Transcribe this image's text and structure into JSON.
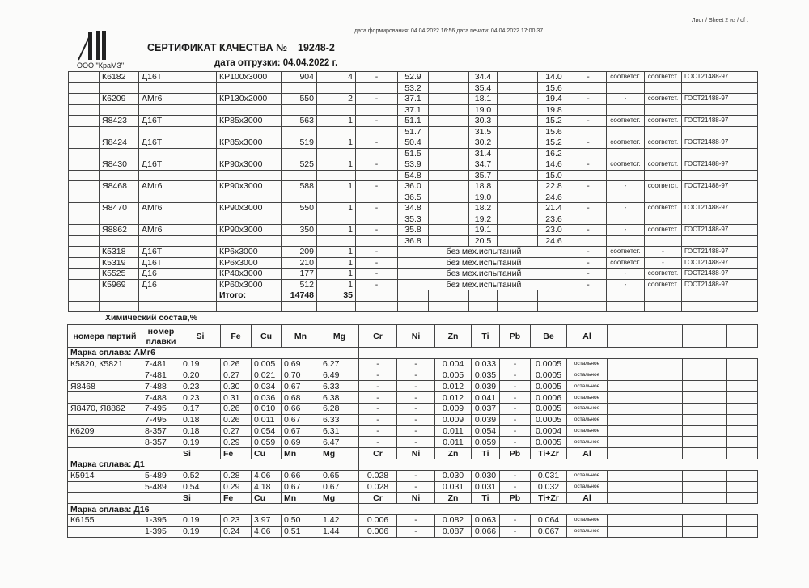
{
  "header": {
    "sheet": "Лист / Sheet  2 из / of  :",
    "dates": "дата формирования: 04.04.2022 16:56  дата печати: 04.04.2022 17:00:37",
    "title": "СЕРТИФИКАТ КАЧЕСТВА №",
    "number": "19248-2",
    "company": "ООО \"КраМЗ\"",
    "logo_text": "KraMZ",
    "ship_date": "дата отгрузки: 04.04.2022 г."
  },
  "shipment": {
    "rows": [
      {
        "lot": "К6182",
        "alloy": "Д16Т",
        "size": "КР100x3000",
        "mass": "904",
        "pcs": "4",
        "d": "-",
        "a": [
          "52.9",
          "53.2"
        ],
        "b": [
          "34.4",
          "35.4"
        ],
        "c": [
          "14.0",
          "15.6"
        ],
        "e": "-",
        "f": "соответст.",
        "g": "соответст.",
        "std": "ГОСТ21488-97"
      },
      {
        "lot": "К6209",
        "alloy": "АМг6",
        "size": "КР130x2000",
        "mass": "550",
        "pcs": "2",
        "d": "-",
        "a": [
          "37.1",
          "37.1"
        ],
        "b": [
          "18.1",
          "19.0"
        ],
        "c": [
          "19.4",
          "19.8"
        ],
        "e": "-",
        "f": "-",
        "g": "соответст.",
        "std": "ГОСТ21488-97"
      },
      {
        "lot": "Я8423",
        "alloy": "Д16Т",
        "size": "КР85x3000",
        "mass": "563",
        "pcs": "1",
        "d": "-",
        "a": [
          "51.1",
          "51.7"
        ],
        "b": [
          "30.3",
          "31.5"
        ],
        "c": [
          "15.2",
          "15.6"
        ],
        "e": "-",
        "f": "соответст.",
        "g": "соответст.",
        "std": "ГОСТ21488-97"
      },
      {
        "lot": "Я8424",
        "alloy": "Д16Т",
        "size": "КР85x3000",
        "mass": "519",
        "pcs": "1",
        "d": "-",
        "a": [
          "50.4",
          "51.5"
        ],
        "b": [
          "30.2",
          "31.4"
        ],
        "c": [
          "15.2",
          "16.2"
        ],
        "e": "-",
        "f": "соответст.",
        "g": "соответст.",
        "std": "ГОСТ21488-97"
      },
      {
        "lot": "Я8430",
        "alloy": "Д16Т",
        "size": "КР90x3000",
        "mass": "525",
        "pcs": "1",
        "d": "-",
        "a": [
          "53.9",
          "54.8"
        ],
        "b": [
          "34.7",
          "35.7"
        ],
        "c": [
          "14.6",
          "15.0"
        ],
        "e": "-",
        "f": "соответст.",
        "g": "соответст.",
        "std": "ГОСТ21488-97"
      },
      {
        "lot": "Я8468",
        "alloy": "АМг6",
        "size": "КР90x3000",
        "mass": "588",
        "pcs": "1",
        "d": "-",
        "a": [
          "36.0",
          "36.5"
        ],
        "b": [
          "18.8",
          "19.0"
        ],
        "c": [
          "22.8",
          "24.6"
        ],
        "e": "-",
        "f": "-",
        "g": "соответст.",
        "std": "ГОСТ21488-97"
      },
      {
        "lot": "Я8470",
        "alloy": "АМг6",
        "size": "КР90x3000",
        "mass": "550",
        "pcs": "1",
        "d": "-",
        "a": [
          "34.8",
          "35.3"
        ],
        "b": [
          "18.2",
          "19.2"
        ],
        "c": [
          "21.4",
          "23.6"
        ],
        "e": "-",
        "f": "-",
        "g": "соответст.",
        "std": "ГОСТ21488-97"
      },
      {
        "lot": "Я8862",
        "alloy": "АМг6",
        "size": "КР90x3000",
        "mass": "350",
        "pcs": "1",
        "d": "-",
        "a": [
          "35.8",
          "36.8"
        ],
        "b": [
          "19.1",
          "20.5"
        ],
        "c": [
          "23.0",
          "24.6"
        ],
        "e": "-",
        "f": "-",
        "g": "соответст.",
        "std": "ГОСТ21488-97"
      }
    ],
    "simple": [
      {
        "lot": "К5318",
        "alloy": "Д16Т",
        "size": "КР6x3000",
        "mass": "209",
        "pcs": "1",
        "d": "-",
        "note": "без мех.испытаний",
        "e": "-",
        "f": "соответст.",
        "g": "-",
        "std": "ГОСТ21488-97"
      },
      {
        "lot": "К5319",
        "alloy": "Д16Т",
        "size": "КР6x3000",
        "mass": "210",
        "pcs": "1",
        "d": "-",
        "note": "без мех.испытаний",
        "e": "-",
        "f": "соответст.",
        "g": "-",
        "std": "ГОСТ21488-97"
      },
      {
        "lot": "К5525",
        "alloy": "Д16",
        "size": "КР40x3000",
        "mass": "177",
        "pcs": "1",
        "d": "-",
        "note": "без мех.испытаний",
        "e": "-",
        "f": "-",
        "g": "соответст.",
        "std": "ГОСТ21488-97"
      },
      {
        "lot": "К5969",
        "alloy": "Д16",
        "size": "КР60x3000",
        "mass": "512",
        "pcs": "1",
        "d": "-",
        "note": "без мех.испытаний",
        "e": "-",
        "f": "-",
        "g": "соответст.",
        "std": "ГОСТ21488-97"
      }
    ],
    "total_label": "Итого:",
    "total_mass": "14748",
    "total_pcs": "35"
  },
  "chem": {
    "title": "Химический состав,%",
    "headers": [
      "номера партий",
      "номер плавки",
      "Si",
      "Fe",
      "Cu",
      "Mn",
      "Mg",
      "Cr",
      "Ni",
      "Zn",
      "Ti",
      "Pb",
      "Be",
      "Al"
    ],
    "groups": [
      {
        "grade": "Марка сплава: АМг6",
        "rows": [
          [
            "К5820, К5821",
            "7-481",
            "0.19",
            "0.26",
            "0.005",
            "0.69",
            "6.27",
            "-",
            "-",
            "0.004",
            "0.033",
            "-",
            "0.0005",
            "остальное"
          ],
          [
            "",
            "7-481",
            "0.20",
            "0.27",
            "0.021",
            "0.70",
            "6.49",
            "-",
            "-",
            "0.005",
            "0.035",
            "-",
            "0.0005",
            "остальное"
          ],
          [
            "Я8468",
            "7-488",
            "0.23",
            "0.30",
            "0.034",
            "0.67",
            "6.33",
            "-",
            "-",
            "0.012",
            "0.039",
            "-",
            "0.0005",
            "остальное"
          ],
          [
            "",
            "7-488",
            "0.23",
            "0.31",
            "0.036",
            "0.68",
            "6.38",
            "-",
            "-",
            "0.012",
            "0.041",
            "-",
            "0.0006",
            "остальное"
          ],
          [
            "Я8470, Я8862",
            "7-495",
            "0.17",
            "0.26",
            "0.010",
            "0.66",
            "6.28",
            "-",
            "-",
            "0.009",
            "0.037",
            "-",
            "0.0005",
            "остальное"
          ],
          [
            "",
            "7-495",
            "0.18",
            "0.26",
            "0.011",
            "0.67",
            "6.33",
            "-",
            "-",
            "0.009",
            "0.039",
            "-",
            "0.0005",
            "остальное"
          ],
          [
            "К6209",
            "8-357",
            "0.18",
            "0.27",
            "0.054",
            "0.67",
            "6.31",
            "-",
            "-",
            "0.011",
            "0.054",
            "-",
            "0.0004",
            "остальное"
          ],
          [
            "",
            "8-357",
            "0.19",
            "0.29",
            "0.059",
            "0.69",
            "6.47",
            "-",
            "-",
            "0.011",
            "0.059",
            "-",
            "0.0005",
            "остальное"
          ]
        ],
        "subheader": [
          "Si",
          "Fe",
          "Cu",
          "Mn",
          "Mg",
          "Cr",
          "Ni",
          "Zn",
          "Ti",
          "Pb",
          "Ti+Zr",
          "Al"
        ]
      },
      {
        "grade": "Марка сплава: Д1",
        "rows": [
          [
            "К5914",
            "5-489",
            "0.52",
            "0.28",
            "4.06",
            "0.66",
            "0.65",
            "0.028",
            "-",
            "0.030",
            "0.030",
            "-",
            "0.031",
            "остальное"
          ],
          [
            "",
            "5-489",
            "0.54",
            "0.29",
            "4.18",
            "0.67",
            "0.67",
            "0.028",
            "-",
            "0.031",
            "0.031",
            "-",
            "0.032",
            "остальное"
          ]
        ],
        "subheader": [
          "Si",
          "Fe",
          "Cu",
          "Mn",
          "Mg",
          "Cr",
          "Ni",
          "Zn",
          "Ti",
          "Pb",
          "Ti+Zr",
          "Al"
        ]
      },
      {
        "grade": "Марка сплава: Д16",
        "rows": [
          [
            "К6155",
            "1-395",
            "0.19",
            "0.23",
            "3.97",
            "0.50",
            "1.42",
            "0.006",
            "-",
            "0.082",
            "0.063",
            "-",
            "0.064",
            "остальное"
          ],
          [
            "",
            "1-395",
            "0.19",
            "0.24",
            "4.06",
            "0.51",
            "1.44",
            "0.006",
            "-",
            "0.087",
            "0.066",
            "-",
            "0.067",
            "остальное"
          ]
        ]
      }
    ]
  }
}
